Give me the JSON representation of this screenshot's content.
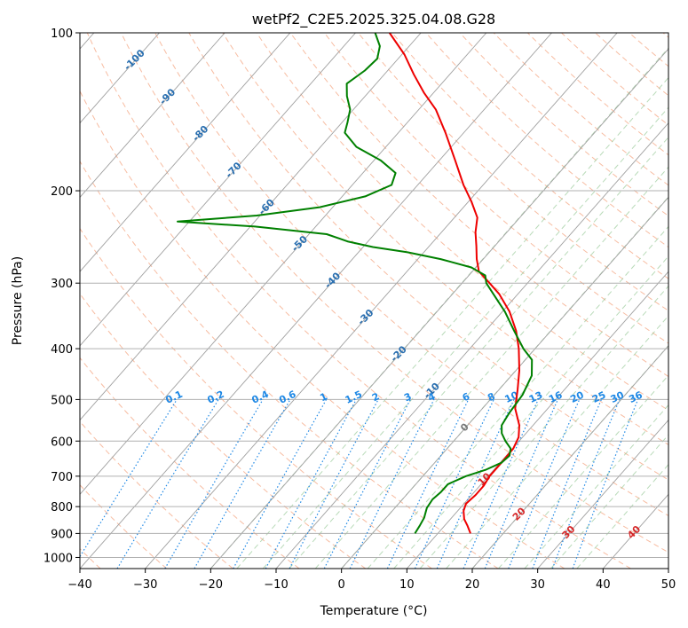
{
  "chart_data": {
    "type": "line",
    "subtype": "skew-t log-p diagram",
    "title": "wetPf2_C2E5.2025.325.04.08.G28",
    "xlabel": "Temperature (°C)",
    "ylabel": "Pressure (hPa)",
    "xlim": [
      -40,
      50
    ],
    "ylim": [
      1050,
      100
    ],
    "x_ticks": [
      "−40",
      "−30",
      "−20",
      "−10",
      "0",
      "10",
      "20",
      "30",
      "40",
      "50"
    ],
    "x_tick_values": [
      -40,
      -30,
      -20,
      -10,
      0,
      10,
      20,
      30,
      40,
      50
    ],
    "y_ticks": [
      "100",
      "200",
      "300",
      "400",
      "500",
      "600",
      "700",
      "800",
      "900",
      "1000"
    ],
    "y_tick_values": [
      100,
      200,
      300,
      400,
      500,
      600,
      700,
      800,
      900,
      1000
    ],
    "colors": {
      "temperature": "#ee0000",
      "dewpoint": "#008000",
      "isotherm": "#a0a0a0",
      "dry_adiabat": "#f4a582",
      "moist_adiabat": "#88c288",
      "mixing_ratio": "#1e88e5",
      "isotherm_label_cold": "#2a6fb0",
      "isotherm_label_warm": "#d62728",
      "isotherm_label_zero": "#777777"
    },
    "isotherm_labels": [
      {
        "t": -100,
        "text": "-100"
      },
      {
        "t": -90,
        "text": "-90"
      },
      {
        "t": -80,
        "text": "-80"
      },
      {
        "t": -70,
        "text": "-70"
      },
      {
        "t": -60,
        "text": "-60"
      },
      {
        "t": -50,
        "text": "-50"
      },
      {
        "t": -40,
        "text": "-40"
      },
      {
        "t": -30,
        "text": "-30"
      },
      {
        "t": -20,
        "text": "-20"
      },
      {
        "t": -10,
        "text": "-10"
      },
      {
        "t": 0,
        "text": "0"
      },
      {
        "t": 10,
        "text": "10"
      },
      {
        "t": 20,
        "text": "20"
      },
      {
        "t": 30,
        "text": "30"
      },
      {
        "t": 40,
        "text": "40"
      }
    ],
    "mixing_ratio_labels": [
      "0.1",
      "0.2",
      "0.4",
      "0.6",
      "1",
      "1.5",
      "2",
      "3",
      "4",
      "6",
      "8",
      "10",
      "13",
      "16",
      "20",
      "25",
      "30",
      "36"
    ],
    "mixing_ratio_values": [
      0.1,
      0.2,
      0.4,
      0.6,
      1,
      1.5,
      2,
      3,
      4,
      6,
      8,
      10,
      13,
      16,
      20,
      25,
      30,
      36
    ],
    "series": [
      {
        "name": "Temperature",
        "color": "#ee0000",
        "points": [
          {
            "p": 900,
            "t": 15.0
          },
          {
            "p": 870,
            "t": 13.5
          },
          {
            "p": 845,
            "t": 12.1
          },
          {
            "p": 815,
            "t": 10.9
          },
          {
            "p": 790,
            "t": 10.3
          },
          {
            "p": 760,
            "t": 10.6
          },
          {
            "p": 730,
            "t": 10.6
          },
          {
            "p": 700,
            "t": 10.2
          },
          {
            "p": 660,
            "t": 10.2
          },
          {
            "p": 620,
            "t": 10.1
          },
          {
            "p": 590,
            "t": 9.4
          },
          {
            "p": 560,
            "t": 7.9
          },
          {
            "p": 520,
            "t": 5.0
          },
          {
            "p": 480,
            "t": 2.9
          },
          {
            "p": 440,
            "t": 0.5
          },
          {
            "p": 400,
            "t": -2.5
          },
          {
            "p": 370,
            "t": -5.3
          },
          {
            "p": 340,
            "t": -8.9
          },
          {
            "p": 315,
            "t": -12.8
          },
          {
            "p": 300,
            "t": -15.8
          },
          {
            "p": 285,
            "t": -19.0
          },
          {
            "p": 270,
            "t": -21.0
          },
          {
            "p": 255,
            "t": -22.8
          },
          {
            "p": 240,
            "t": -24.8
          },
          {
            "p": 225,
            "t": -26.5
          },
          {
            "p": 210,
            "t": -29.5
          },
          {
            "p": 195,
            "t": -33.0
          },
          {
            "p": 175,
            "t": -37.6
          },
          {
            "p": 155,
            "t": -42.8
          },
          {
            "p": 140,
            "t": -47.4
          },
          {
            "p": 130,
            "t": -51.5
          },
          {
            "p": 120,
            "t": -55.5
          },
          {
            "p": 110,
            "t": -59.6
          },
          {
            "p": 100,
            "t": -64.8
          }
        ]
      },
      {
        "name": "Dewpoint",
        "color": "#008000",
        "points": [
          {
            "p": 900,
            "t": 6.5
          },
          {
            "p": 870,
            "t": 6.2
          },
          {
            "p": 840,
            "t": 5.8
          },
          {
            "p": 805,
            "t": 4.9
          },
          {
            "p": 775,
            "t": 4.6
          },
          {
            "p": 750,
            "t": 4.9
          },
          {
            "p": 725,
            "t": 4.9
          },
          {
            "p": 700,
            "t": 6.6
          },
          {
            "p": 680,
            "t": 8.8
          },
          {
            "p": 660,
            "t": 10.2
          },
          {
            "p": 640,
            "t": 10.5
          },
          {
            "p": 620,
            "t": 9.7
          },
          {
            "p": 600,
            "t": 7.9
          },
          {
            "p": 580,
            "t": 6.3
          },
          {
            "p": 560,
            "t": 5.2
          },
          {
            "p": 530,
            "t": 4.7
          },
          {
            "p": 490,
            "t": 4.3
          },
          {
            "p": 450,
            "t": 3.1
          },
          {
            "p": 420,
            "t": 1.0
          },
          {
            "p": 400,
            "t": -1.8
          },
          {
            "p": 370,
            "t": -5.6
          },
          {
            "p": 340,
            "t": -9.6
          },
          {
            "p": 315,
            "t": -13.7
          },
          {
            "p": 300,
            "t": -16.3
          },
          {
            "p": 290,
            "t": -17.5
          },
          {
            "p": 280,
            "t": -20.7
          },
          {
            "p": 270,
            "t": -26.5
          },
          {
            "p": 262,
            "t": -32.5
          },
          {
            "p": 256,
            "t": -38.5
          },
          {
            "p": 250,
            "t": -43.0
          },
          {
            "p": 242,
            "t": -47.3
          },
          {
            "p": 234,
            "t": -59.3
          },
          {
            "p": 229,
            "t": -71.8
          },
          {
            "p": 223,
            "t": -60.5
          },
          {
            "p": 215,
            "t": -52.0
          },
          {
            "p": 205,
            "t": -46.5
          },
          {
            "p": 195,
            "t": -44.0
          },
          {
            "p": 185,
            "t": -45.0
          },
          {
            "p": 175,
            "t": -49.0
          },
          {
            "p": 165,
            "t": -54.5
          },
          {
            "p": 155,
            "t": -58.2
          },
          {
            "p": 148,
            "t": -59.2
          },
          {
            "p": 140,
            "t": -60.5
          },
          {
            "p": 132,
            "t": -62.8
          },
          {
            "p": 125,
            "t": -64.5
          },
          {
            "p": 118,
            "t": -63.5
          },
          {
            "p": 112,
            "t": -63.2
          },
          {
            "p": 106,
            "t": -64.5
          },
          {
            "p": 100,
            "t": -67.0
          }
        ]
      }
    ]
  }
}
